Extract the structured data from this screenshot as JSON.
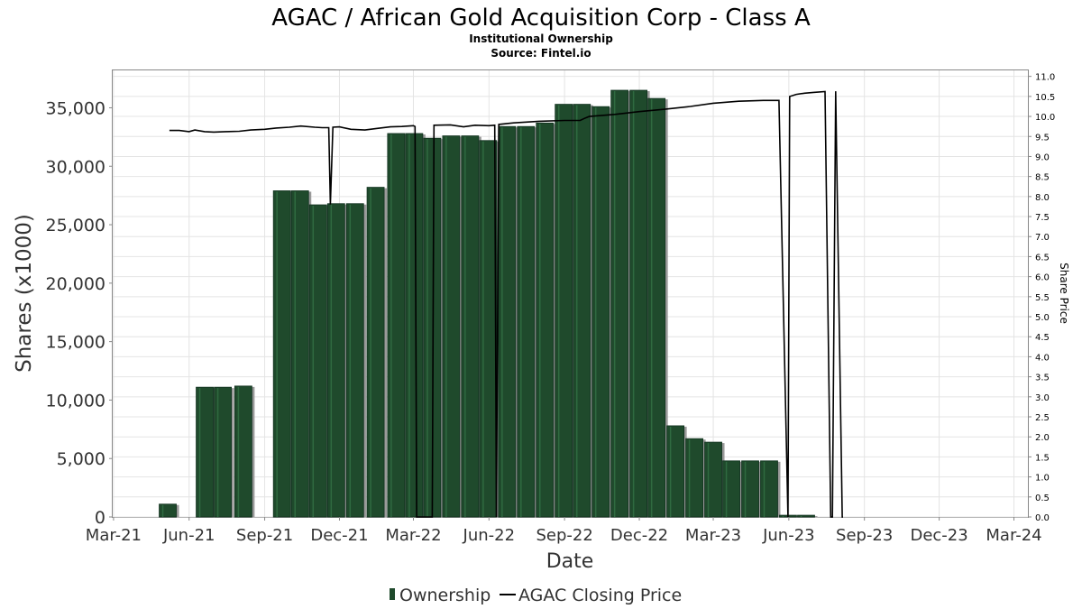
{
  "chart_data": {
    "type": "bar",
    "title": "AGAC / African Gold Acquisition Corp - Class A",
    "subtitle_1": "Institutional Ownership",
    "subtitle_2": "Source: Fintel.io",
    "xlabel": "Date",
    "ylabel": "Shares (x1000)",
    "y2label": "Share Price",
    "x_ticks": [
      "Mar-21",
      "Jun-21",
      "Sep-21",
      "Dec-21",
      "Mar-22",
      "Jun-22",
      "Sep-22",
      "Dec-22",
      "Mar-23",
      "Jun-23",
      "Sep-23",
      "Dec-23",
      "Mar-24"
    ],
    "y_ticks": [
      "0",
      "5,000",
      "10,000",
      "15,000",
      "20,000",
      "25,000",
      "30,000",
      "35,000"
    ],
    "y_tick_values": [
      0,
      5000,
      10000,
      15000,
      20000,
      25000,
      30000,
      35000
    ],
    "y2_ticks": [
      "0.0",
      "0.5",
      "1.0",
      "1.5",
      "2.0",
      "2.5",
      "3.0",
      "3.5",
      "4.0",
      "4.5",
      "5.0",
      "5.5",
      "6.0",
      "6.5",
      "7.0",
      "7.5",
      "8.0",
      "8.5",
      "9.0",
      "9.5",
      "10.0",
      "10.5",
      "11.0"
    ],
    "y2_tick_values": [
      0.0,
      0.5,
      1.0,
      1.5,
      2.0,
      2.5,
      3.0,
      3.5,
      4.0,
      4.5,
      5.0,
      5.5,
      6.0,
      6.5,
      7.0,
      7.5,
      8.0,
      8.5,
      9.0,
      9.5,
      10.0,
      10.5,
      11.0
    ],
    "xlim": [
      "2021-02-28",
      "2024-03-18"
    ],
    "ylim": [
      0,
      38200
    ],
    "y2lim": [
      0,
      11.15
    ],
    "grid": true,
    "legend_position": "bottom",
    "series": [
      {
        "name": "Ownership",
        "type": "bar",
        "color": "#1f4a2c",
        "x": [
          "2021-05-06",
          "2021-05-31",
          "2021-06-20",
          "2021-07-12",
          "2021-08-06",
          "2021-08-31",
          "2021-09-22",
          "2021-10-14",
          "2021-11-05",
          "2021-11-27",
          "2021-12-20",
          "2022-01-14",
          "2022-02-08",
          "2022-03-02",
          "2022-03-24",
          "2022-04-16",
          "2022-05-09",
          "2022-05-31",
          "2022-06-23",
          "2022-07-16",
          "2022-08-08",
          "2022-08-31",
          "2022-09-22",
          "2022-10-15",
          "2022-11-07",
          "2022-11-30",
          "2022-12-22",
          "2023-01-14",
          "2023-02-06",
          "2023-03-01",
          "2023-03-23",
          "2023-04-15",
          "2023-05-08",
          "2023-05-31",
          "2023-06-22",
          "2023-07-15",
          "2023-08-07",
          "2023-08-30",
          "2023-09-21",
          "2023-10-14",
          "2023-11-06",
          "2023-11-29",
          "2023-12-21"
        ],
        "values": [
          1100,
          0,
          11100,
          11100,
          11200,
          0,
          27900,
          27900,
          26700,
          26800,
          26800,
          28200,
          32800,
          32800,
          32400,
          32600,
          32600,
          32200,
          33400,
          33400,
          33700,
          35300,
          35300,
          35100,
          36500,
          36500,
          35800,
          7800,
          6700,
          6400,
          4800,
          4800,
          4800,
          150,
          150,
          0,
          0,
          0,
          0,
          0,
          0,
          0,
          0
        ]
      },
      {
        "name": "AGAC Closing Price",
        "type": "line",
        "color": "#000000",
        "x": [
          "2021-05-08",
          "2021-05-20",
          "2021-06-01",
          "2021-06-08",
          "2021-06-20",
          "2021-07-01",
          "2021-07-15",
          "2021-08-01",
          "2021-08-15",
          "2021-09-01",
          "2021-09-15",
          "2021-10-01",
          "2021-10-15",
          "2021-11-01",
          "2021-11-10",
          "2021-11-18",
          "2021-11-20",
          "2021-11-23",
          "2021-12-01",
          "2021-12-15",
          "2022-01-01",
          "2022-01-15",
          "2022-02-01",
          "2022-02-15",
          "2022-03-01",
          "2022-03-03",
          "2022-03-05",
          "2022-03-24",
          "2022-03-26",
          "2022-04-15",
          "2022-05-01",
          "2022-05-15",
          "2022-06-01",
          "2022-06-08",
          "2022-06-10",
          "2022-06-13",
          "2022-07-01",
          "2022-08-01",
          "2022-09-01",
          "2022-09-20",
          "2022-09-25",
          "2022-10-01",
          "2022-11-01",
          "2022-12-01",
          "2023-01-01",
          "2023-02-01",
          "2023-03-01",
          "2023-04-01",
          "2023-05-01",
          "2023-05-20",
          "2023-05-31",
          "2023-06-02",
          "2023-06-10",
          "2023-06-20",
          "2023-07-01",
          "2023-07-15",
          "2023-07-22",
          "2023-07-24",
          "2023-07-28",
          "2023-08-05",
          "2023-08-06"
        ],
        "values": [
          9.65,
          9.65,
          9.62,
          9.66,
          9.62,
          9.61,
          9.62,
          9.63,
          9.66,
          9.68,
          9.71,
          9.73,
          9.76,
          9.73,
          9.72,
          9.72,
          7.8,
          9.73,
          9.74,
          9.68,
          9.66,
          9.7,
          9.74,
          9.75,
          9.77,
          9.75,
          0.0,
          0.0,
          9.78,
          9.79,
          9.74,
          9.78,
          9.77,
          9.78,
          0.0,
          9.8,
          9.84,
          9.88,
          9.9,
          9.9,
          9.95,
          10.0,
          10.05,
          10.12,
          10.18,
          10.25,
          10.33,
          10.38,
          10.4,
          10.4,
          0.0,
          10.5,
          10.55,
          10.58,
          10.6,
          10.62,
          0.0,
          0.0,
          10.63,
          0.0,
          0.0
        ]
      }
    ]
  },
  "legend": {
    "ownership_label": "Ownership",
    "price_label": "AGAC Closing Price"
  }
}
